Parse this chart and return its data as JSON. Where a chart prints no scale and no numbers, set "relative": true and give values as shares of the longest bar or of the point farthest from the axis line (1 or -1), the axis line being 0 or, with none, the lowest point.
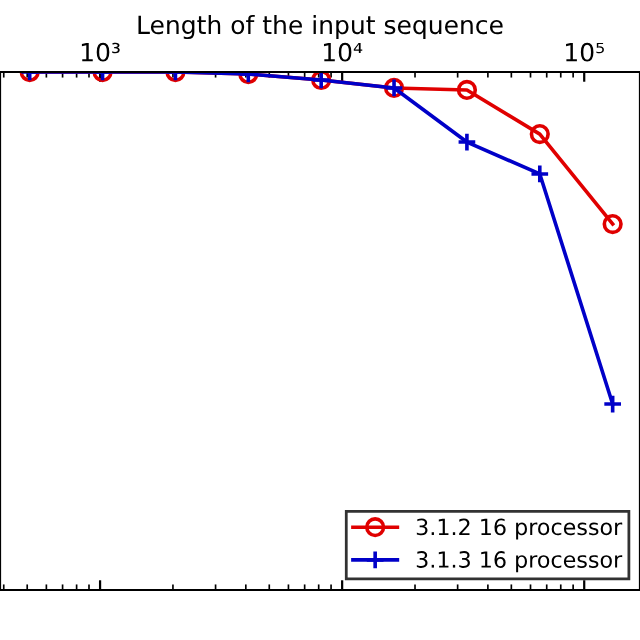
{
  "chart_data": {
    "type": "line",
    "relative": true,
    "xlabel": "Length of the input sequence",
    "log": "x",
    "x": [
      512,
      1024,
      2048,
      4096,
      8192,
      16384,
      32768,
      65536,
      131072
    ],
    "xlim": [
      386,
      170000
    ],
    "xticks": [
      {
        "value": 1000,
        "label": "10³"
      },
      {
        "value": 10000,
        "label": "10⁴"
      },
      {
        "value": 100000,
        "label": "10⁵"
      }
    ],
    "series": [
      {
        "name": "3.1.2 16 processor",
        "color": "#e00000",
        "marker": "circle",
        "values": [
          0,
          0,
          0,
          -0.006,
          -0.024,
          -0.048,
          -0.054,
          -0.187,
          -0.458
        ]
      },
      {
        "name": "3.1.3 16 processor",
        "color": "#0000c8",
        "marker": "cross",
        "values": [
          0,
          0,
          0,
          -0.006,
          -0.024,
          -0.048,
          -0.211,
          -0.307,
          -1.0
        ]
      }
    ],
    "legend": "bottom right",
    "grid": false
  }
}
